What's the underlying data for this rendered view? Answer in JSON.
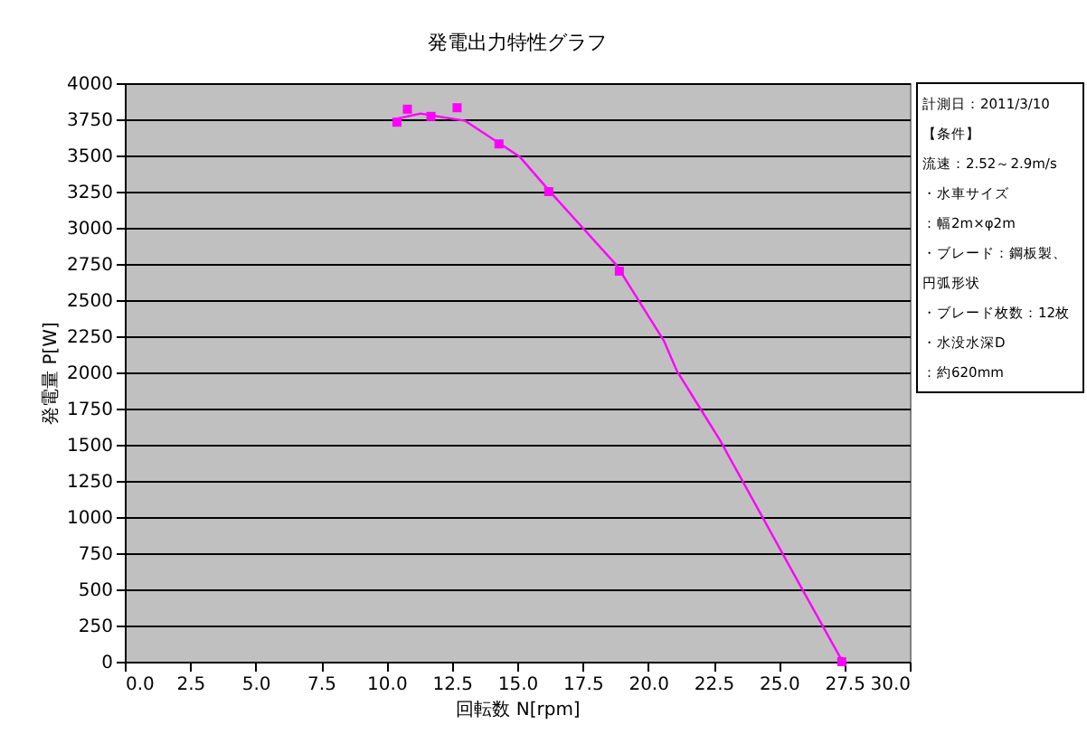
{
  "chart_data": {
    "type": "scatter",
    "title": "発電出力特性グラフ",
    "xlabel": "回転数 N[rpm]",
    "ylabel": "発電量 P[W]",
    "xlim": [
      0,
      30
    ],
    "xticks": [
      {
        "value": 0,
        "label": "0.0"
      },
      2.5,
      {
        "value": 5,
        "label": "5.0"
      },
      7.5,
      {
        "value": 10,
        "label": "10.0"
      },
      12.5,
      {
        "value": 15,
        "label": "15.0"
      },
      17.5,
      {
        "value": 20,
        "label": "20.0"
      },
      22.5,
      {
        "value": 25,
        "label": "25.0"
      },
      27.5,
      {
        "value": 30,
        "label": "30.0"
      }
    ],
    "ylim": [
      0,
      4000
    ],
    "yticks": [
      0,
      250,
      500,
      750,
      1000,
      1250,
      1500,
      1750,
      2000,
      2250,
      2500,
      2750,
      3000,
      3250,
      3500,
      3750,
      4000
    ],
    "grid": "y",
    "marker": "square",
    "series": [
      {
        "color": "#ff00ff",
        "x": [
          10.4,
          10.8,
          11.7,
          12.7,
          14.3,
          16.2,
          18.9,
          27.4
        ],
        "values": [
          3730,
          3820,
          3770,
          3830,
          3580,
          3250,
          2700,
          0
        ]
      },
      {
        "type": "line",
        "color": "#ff00ff",
        "marker": "none",
        "x": [
          10.3,
          11.3,
          13.0,
          15.1,
          16.3,
          18.8,
          20.6,
          21.1,
          22.75,
          24.4,
          25.8,
          27.4
        ],
        "values": [
          3750,
          3790,
          3740,
          3490,
          3240,
          2740,
          2220,
          2010,
          1530,
          990,
          530,
          10
        ]
      }
    ],
    "annotations": [
      "計測日：2011/3/10",
      "【条件】",
      "流速：2.52～2.9m/s",
      "・水車サイズ",
      "：幅2m×φ2m",
      "・ブレード：鋼板製、",
      "円弧形状",
      "・ブレード枚数：12枚",
      "・水没水深D",
      "：約620mm"
    ]
  }
}
